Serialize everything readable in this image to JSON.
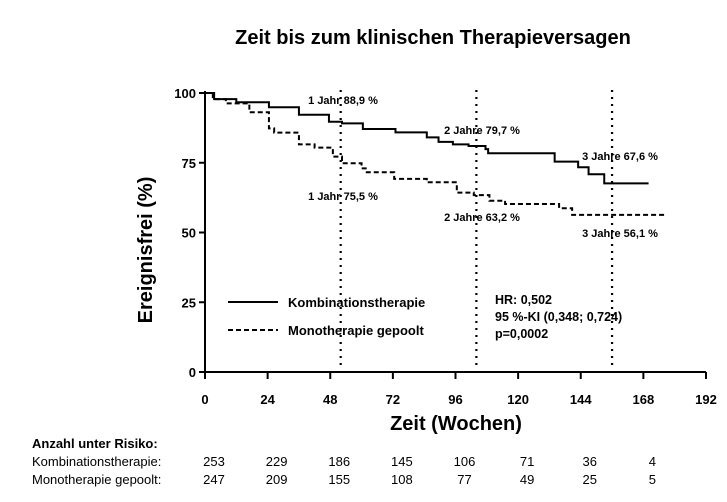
{
  "chart_data": {
    "type": "line",
    "title": "Zeit bis zum klinischen Therapieversagen",
    "xlabel": "Zeit (Wochen)",
    "ylabel": "Ereignisfrei (%)",
    "xlim": [
      0,
      192
    ],
    "ylim": [
      0,
      100
    ],
    "xticks": [
      0,
      24,
      48,
      72,
      96,
      120,
      144,
      168,
      192
    ],
    "yticks": [
      0,
      25,
      50,
      75,
      100
    ],
    "grid": false,
    "legend_placement": "bottom-left",
    "reference_lines_weeks": [
      52,
      104,
      156
    ],
    "series": [
      {
        "name": "Kombinationstherapie",
        "style": "solid",
        "steps": [
          [
            0,
            100
          ],
          [
            3.5,
            97.8
          ],
          [
            12,
            96.7
          ],
          [
            24.5,
            94.9
          ],
          [
            36,
            92.2
          ],
          [
            47.5,
            89.7
          ],
          [
            52.5,
            89.1
          ],
          [
            60.5,
            87.1
          ],
          [
            73,
            85.9
          ],
          [
            85,
            84.1
          ],
          [
            89.5,
            82.5
          ],
          [
            95,
            81.6
          ],
          [
            101,
            81.0
          ],
          [
            107.5,
            79.9
          ],
          [
            108.5,
            78.4
          ],
          [
            134,
            75.4
          ],
          [
            143,
            73.4
          ],
          [
            147,
            70.9
          ],
          [
            153,
            67.6
          ],
          [
            170,
            67.6
          ]
        ]
      },
      {
        "name": "Monotherapie gepoolt",
        "style": "dashed",
        "steps": [
          [
            0,
            100
          ],
          [
            3,
            97.8
          ],
          [
            8,
            96.3
          ],
          [
            17,
            93.1
          ],
          [
            24.5,
            87.3
          ],
          [
            26.5,
            85.8
          ],
          [
            36,
            81.6
          ],
          [
            42,
            80.4
          ],
          [
            49,
            77.2
          ],
          [
            52.5,
            74.8
          ],
          [
            60,
            73.0
          ],
          [
            62,
            71.6
          ],
          [
            72.5,
            69.2
          ],
          [
            85,
            68.0
          ],
          [
            96.5,
            64.3
          ],
          [
            103,
            63.4
          ],
          [
            109,
            61.4
          ],
          [
            115,
            60.2
          ],
          [
            135.7,
            58.7
          ],
          [
            140.7,
            56.3
          ],
          [
            177,
            56.3
          ]
        ]
      }
    ],
    "annotations": {
      "upper": [
        "1 Jahr 88,9 %",
        "2 Jahre 79,7 %",
        "3 Jahre 67,6 %"
      ],
      "lower": [
        "1 Jahr 75,5 %",
        "2 Jahre 63,2 %",
        "3 Jahre 56,1 %"
      ]
    },
    "stats": [
      "HR: 0,502",
      "95 %-KI (0,348; 0,724)",
      "p=0,0002"
    ],
    "risk_table": {
      "title": "Anzahl unter Risiko:",
      "weeks": [
        0,
        24,
        48,
        72,
        96,
        120,
        144,
        168
      ],
      "rows": [
        {
          "label": "Kombinationstherapie:",
          "values": [
            "253",
            "229",
            "186",
            "145",
            "106",
            "71",
            "36",
            "4"
          ]
        },
        {
          "label": "Monotherapie gepoolt:",
          "values": [
            "247",
            "209",
            "155",
            "108",
            "77",
            "49",
            "25",
            "5"
          ]
        }
      ]
    }
  }
}
